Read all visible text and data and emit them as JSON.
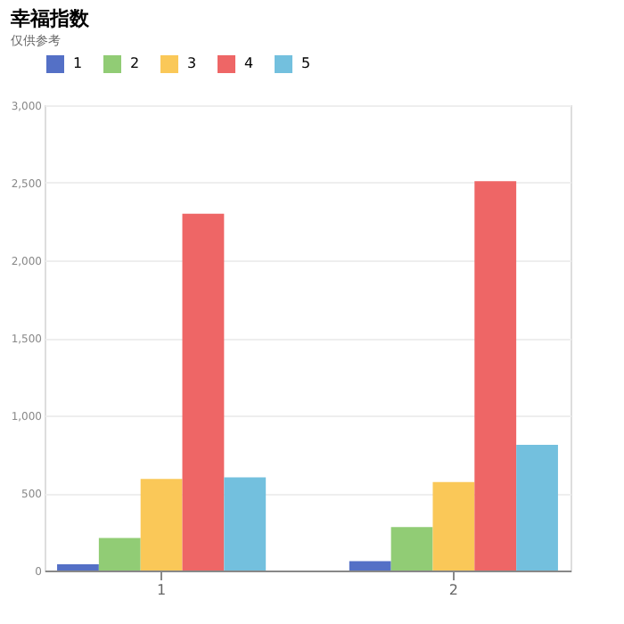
{
  "chart_data": {
    "type": "bar",
    "title": "幸福指数",
    "subtitle": "仅供参考",
    "categories": [
      "1",
      "2"
    ],
    "series": [
      {
        "name": "1",
        "color": "#5470c6",
        "values": [
          40,
          60
        ]
      },
      {
        "name": "2",
        "color": "#91cc75",
        "values": [
          210,
          280
        ]
      },
      {
        "name": "3",
        "color": "#fac858",
        "values": [
          590,
          570
        ]
      },
      {
        "name": "4",
        "color": "#ee6666",
        "values": [
          2300,
          2510
        ]
      },
      {
        "name": "5",
        "color": "#73c0de",
        "values": [
          600,
          810
        ]
      }
    ],
    "ylim": [
      0,
      3000
    ],
    "yticks": [
      0,
      500,
      {
        "value": 1000,
        "label": "1,000"
      },
      {
        "value": 1500,
        "label": "1,500"
      },
      {
        "value": 2000,
        "label": "2,000"
      },
      {
        "value": 2500,
        "label": "2,500"
      },
      {
        "value": 3000,
        "label": "3,000"
      }
    ],
    "grid": "y",
    "legend": "top"
  }
}
